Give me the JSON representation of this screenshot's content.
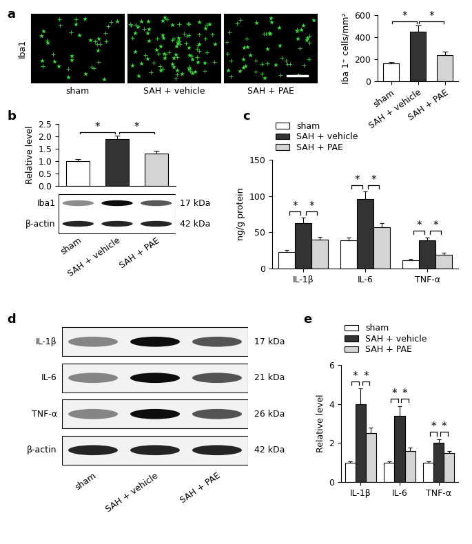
{
  "chart_data": [
    {
      "type": "bar",
      "categories": [
        "sham",
        "SAH + vehicle",
        "SAH + PAE"
      ],
      "values": [
        160,
        450,
        240
      ],
      "errors": [
        15,
        55,
        28
      ],
      "colors": [
        "#ffffff",
        "#333333",
        "#d4d4d4"
      ],
      "y_label": "Iba 1⁺ cells/mm²",
      "ylim": [
        0,
        600
      ],
      "yticks": [
        0,
        200,
        400,
        600
      ],
      "significance": [
        {
          "pair": [
            "sham",
            "SAH + vehicle"
          ],
          "text": "*"
        },
        {
          "pair": [
            "SAH + vehicle",
            "SAH + PAE"
          ],
          "text": "*"
        }
      ]
    },
    {
      "panel_label": "b",
      "type": "bar",
      "categories": [
        "sham",
        "SAH + vehicle",
        "SAH + PAE"
      ],
      "values": [
        1.0,
        1.88,
        1.3
      ],
      "errors": [
        0.08,
        0.15,
        0.12
      ],
      "colors": [
        "#ffffff",
        "#333333",
        "#d4d4d4"
      ],
      "y_label": "Relative level",
      "ylim": [
        0,
        2.5
      ],
      "yticks": [
        {
          "value": 0,
          "label": "0.0"
        },
        0.5,
        {
          "value": 1,
          "label": "1.0"
        },
        1.5,
        {
          "value": 2,
          "label": "2.0"
        },
        2.5
      ],
      "tick_labels": "y",
      "significance": [
        {
          "pair": [
            "sham",
            "SAH + vehicle"
          ],
          "text": "*"
        },
        {
          "pair": [
            "SAH + vehicle",
            "SAH + PAE"
          ],
          "text": "*"
        }
      ],
      "blot": {
        "rows": [
          {
            "name": "Iba1",
            "size": "17 kDa"
          },
          {
            "name": "β-actin",
            "size": "42 kDa"
          }
        ]
      }
    },
    {
      "panel_label": "c",
      "type": "bar",
      "categories": [
        "IL-1β",
        "IL-6",
        "TNF-α"
      ],
      "series": [
        {
          "name": "sham",
          "color": "#ffffff",
          "values": [
            23,
            39,
            11
          ],
          "errors": [
            3,
            4,
            2
          ]
        },
        {
          "name": "SAH + vehicle",
          "color": "#333333",
          "values": [
            63,
            96,
            39
          ],
          "errors": [
            7,
            10,
            4
          ]
        },
        {
          "name": "SAH + PAE",
          "color": "#d4d4d4",
          "values": [
            40,
            57,
            19
          ],
          "errors": [
            4,
            6,
            3
          ]
        }
      ],
      "legend": "upper left",
      "y_label": "ng/g protein",
      "ylim": [
        0,
        150
      ],
      "yticks": [
        0,
        50,
        100,
        150
      ],
      "significance": [
        {
          "category": "IL-1β",
          "pair": [
            "sham",
            "SAH + vehicle"
          ],
          "text": "*"
        },
        {
          "category": "IL-1β",
          "pair": [
            "SAH + vehicle",
            "SAH + PAE"
          ],
          "text": "*"
        },
        {
          "category": "IL-6",
          "pair": [
            "sham",
            "SAH + vehicle"
          ],
          "text": "*"
        },
        {
          "category": "IL-6",
          "pair": [
            "SAH + vehicle",
            "SAH + PAE"
          ],
          "text": "*"
        },
        {
          "category": "TNF-α",
          "pair": [
            "sham",
            "SAH + vehicle"
          ],
          "text": "*"
        },
        {
          "category": "TNF-α",
          "pair": [
            "SAH + vehicle",
            "SAH + PAE"
          ],
          "text": "*"
        }
      ]
    },
    {
      "panel_label": "e",
      "type": "bar",
      "categories": [
        "IL-1β",
        "IL-6",
        "TNF-α"
      ],
      "series": [
        {
          "name": "sham",
          "color": "#ffffff",
          "values": [
            1.0,
            1.0,
            1.0
          ],
          "errors": [
            0.05,
            0.06,
            0.05
          ]
        },
        {
          "name": "SAH + vehicle",
          "color": "#333333",
          "values": [
            4.0,
            3.4,
            2.0
          ],
          "errors": [
            0.8,
            0.5,
            0.2
          ]
        },
        {
          "name": "SAH + PAE",
          "color": "#d4d4d4",
          "values": [
            2.5,
            1.6,
            1.5
          ],
          "errors": [
            0.3,
            0.15,
            0.1
          ]
        }
      ],
      "legend": "upper left",
      "y_label": "Relative level",
      "ylim": [
        0,
        6
      ],
      "yticks": [
        0,
        2,
        4,
        6
      ],
      "significance": [
        {
          "category": "IL-1β",
          "pair": [
            "sham",
            "SAH + vehicle"
          ],
          "text": "*"
        },
        {
          "category": "IL-1β",
          "pair": [
            "SAH + vehicle",
            "SAH + PAE"
          ],
          "text": "*"
        },
        {
          "category": "IL-6",
          "pair": [
            "sham",
            "SAH + vehicle"
          ],
          "text": "*"
        },
        {
          "category": "IL-6",
          "pair": [
            "SAH + vehicle",
            "SAH + PAE"
          ],
          "text": "*"
        },
        {
          "category": "TNF-α",
          "pair": [
            "sham",
            "SAH + vehicle"
          ],
          "text": "*"
        },
        {
          "category": "TNF-α",
          "pair": [
            "SAH + vehicle",
            "SAH + PAE"
          ],
          "text": "*"
        }
      ]
    }
  ],
  "images": {
    "panel_label": "a",
    "stain": "Iba1",
    "conditions": [
      "sham",
      "SAH + vehicle",
      "SAH + PAE"
    ]
  },
  "blots": [
    {
      "panel_label": "d",
      "lanes": [
        "sham",
        "SAH + vehicle",
        "SAH + PAE"
      ],
      "rows": [
        {
          "name": "IL-1β",
          "size": "17 kDa"
        },
        {
          "name": "IL-6",
          "size": "21 kDa"
        },
        {
          "name": "TNF-α",
          "size": "26 kDa"
        },
        {
          "name": "β-actin",
          "size": "42 kDa"
        }
      ]
    }
  ]
}
